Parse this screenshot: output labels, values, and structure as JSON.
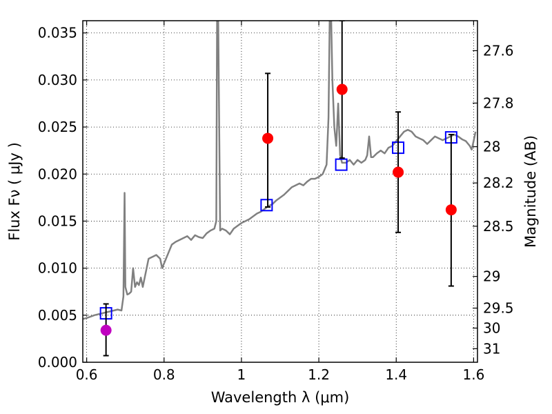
{
  "chart_data": {
    "type": "scatter",
    "xlabel": "Wavelength  λ (μm)",
    "ylabel": "Flux  Fν  ( μJy )",
    "y2label": "Magnitude (AB)",
    "xlim": [
      0.59,
      1.61
    ],
    "ylim": [
      0.0,
      0.0363
    ],
    "grid": true,
    "x_ticks": [
      {
        "value": 0.6,
        "label": "0.6"
      },
      {
        "value": 0.8,
        "label": "0.8"
      },
      {
        "value": 1.0,
        "label": "1"
      },
      {
        "value": 1.2,
        "label": "1.2"
      },
      {
        "value": 1.4,
        "label": "1.4"
      },
      {
        "value": 1.6,
        "label": "1.6"
      }
    ],
    "y_ticks": [
      {
        "value": 0.0,
        "label": "0.000"
      },
      {
        "value": 0.005,
        "label": "0.005"
      },
      {
        "value": 0.01,
        "label": "0.010"
      },
      {
        "value": 0.015,
        "label": "0.015"
      },
      {
        "value": 0.02,
        "label": "0.020"
      },
      {
        "value": 0.025,
        "label": "0.025"
      },
      {
        "value": 0.03,
        "label": "0.030"
      },
      {
        "value": 0.035,
        "label": "0.035"
      }
    ],
    "y2_ticks": [
      {
        "value": 27.6,
        "label": "27.6"
      },
      {
        "value": 27.8,
        "label": "27.8"
      },
      {
        "value": 28.0,
        "label": "28"
      },
      {
        "value": 28.2,
        "label": "28.2"
      },
      {
        "value": 28.5,
        "label": "28.5"
      },
      {
        "value": 29.0,
        "label": "29"
      },
      {
        "value": 29.5,
        "label": "29.5"
      },
      {
        "value": 30.0,
        "label": "30"
      },
      {
        "value": 31.0,
        "label": "31"
      }
    ],
    "series": [
      {
        "kind": "line",
        "color": "#808080",
        "points": [
          [
            0.59,
            0.0046
          ],
          [
            0.6,
            0.0047
          ],
          [
            0.62,
            0.005
          ],
          [
            0.64,
            0.0052
          ],
          [
            0.66,
            0.0054
          ],
          [
            0.68,
            0.0056
          ],
          [
            0.69,
            0.0055
          ],
          [
            0.695,
            0.007
          ],
          [
            0.698,
            0.018
          ],
          [
            0.7,
            0.008
          ],
          [
            0.705,
            0.0072
          ],
          [
            0.71,
            0.0073
          ],
          [
            0.715,
            0.0075
          ],
          [
            0.72,
            0.01
          ],
          [
            0.725,
            0.008
          ],
          [
            0.73,
            0.0085
          ],
          [
            0.735,
            0.0082
          ],
          [
            0.74,
            0.009
          ],
          [
            0.745,
            0.008
          ],
          [
            0.75,
            0.009
          ],
          [
            0.755,
            0.01
          ],
          [
            0.76,
            0.011
          ],
          [
            0.77,
            0.0112
          ],
          [
            0.78,
            0.0114
          ],
          [
            0.79,
            0.011
          ],
          [
            0.795,
            0.01
          ],
          [
            0.8,
            0.0105
          ],
          [
            0.81,
            0.0115
          ],
          [
            0.82,
            0.0125
          ],
          [
            0.83,
            0.0128
          ],
          [
            0.84,
            0.013
          ],
          [
            0.85,
            0.0132
          ],
          [
            0.86,
            0.0134
          ],
          [
            0.87,
            0.013
          ],
          [
            0.88,
            0.0135
          ],
          [
            0.89,
            0.0133
          ],
          [
            0.9,
            0.0132
          ],
          [
            0.91,
            0.0137
          ],
          [
            0.92,
            0.014
          ],
          [
            0.93,
            0.0142
          ],
          [
            0.935,
            0.015
          ],
          [
            0.937,
            0.0363
          ],
          [
            0.94,
            0.0363
          ],
          [
            0.945,
            0.014
          ],
          [
            0.95,
            0.0142
          ],
          [
            0.96,
            0.014
          ],
          [
            0.97,
            0.0136
          ],
          [
            0.98,
            0.0142
          ],
          [
            0.99,
            0.0145
          ],
          [
            1.0,
            0.0148
          ],
          [
            1.01,
            0.015
          ],
          [
            1.02,
            0.0152
          ],
          [
            1.03,
            0.0155
          ],
          [
            1.04,
            0.0158
          ],
          [
            1.05,
            0.016
          ],
          [
            1.06,
            0.0163
          ],
          [
            1.07,
            0.0166
          ],
          [
            1.08,
            0.0168
          ],
          [
            1.09,
            0.0172
          ],
          [
            1.1,
            0.0175
          ],
          [
            1.11,
            0.0178
          ],
          [
            1.12,
            0.0182
          ],
          [
            1.13,
            0.0186
          ],
          [
            1.14,
            0.0188
          ],
          [
            1.15,
            0.019
          ],
          [
            1.16,
            0.0188
          ],
          [
            1.17,
            0.0192
          ],
          [
            1.18,
            0.0195
          ],
          [
            1.19,
            0.0195
          ],
          [
            1.2,
            0.0197
          ],
          [
            1.21,
            0.02
          ],
          [
            1.22,
            0.021
          ],
          [
            1.225,
            0.026
          ],
          [
            1.228,
            0.0363
          ],
          [
            1.232,
            0.0363
          ],
          [
            1.235,
            0.03
          ],
          [
            1.24,
            0.025
          ],
          [
            1.245,
            0.023
          ],
          [
            1.25,
            0.0275
          ],
          [
            1.255,
            0.022
          ],
          [
            1.26,
            0.0212
          ],
          [
            1.27,
            0.0212
          ],
          [
            1.28,
            0.0215
          ],
          [
            1.29,
            0.021
          ],
          [
            1.3,
            0.0215
          ],
          [
            1.31,
            0.0212
          ],
          [
            1.32,
            0.0215
          ],
          [
            1.325,
            0.022
          ],
          [
            1.33,
            0.024
          ],
          [
            1.335,
            0.0218
          ],
          [
            1.34,
            0.0218
          ],
          [
            1.35,
            0.0222
          ],
          [
            1.36,
            0.0225
          ],
          [
            1.37,
            0.0222
          ],
          [
            1.38,
            0.0228
          ],
          [
            1.39,
            0.023
          ],
          [
            1.4,
            0.0235
          ],
          [
            1.41,
            0.024
          ],
          [
            1.42,
            0.0245
          ],
          [
            1.43,
            0.0247
          ],
          [
            1.44,
            0.0245
          ],
          [
            1.45,
            0.024
          ],
          [
            1.46,
            0.0238
          ],
          [
            1.47,
            0.0236
          ],
          [
            1.48,
            0.0232
          ],
          [
            1.49,
            0.0236
          ],
          [
            1.5,
            0.024
          ],
          [
            1.51,
            0.0238
          ],
          [
            1.52,
            0.0236
          ],
          [
            1.53,
            0.0238
          ],
          [
            1.54,
            0.024
          ],
          [
            1.55,
            0.0242
          ],
          [
            1.56,
            0.024
          ],
          [
            1.57,
            0.0237
          ],
          [
            1.58,
            0.0235
          ],
          [
            1.59,
            0.023
          ],
          [
            1.595,
            0.0226
          ],
          [
            1.6,
            0.0235
          ],
          [
            1.605,
            0.0245
          ]
        ]
      },
      {
        "kind": "squares",
        "color": "#0000ff",
        "points": [
          [
            0.65,
            0.0052
          ],
          [
            1.065,
            0.0167
          ],
          [
            1.258,
            0.021
          ],
          [
            1.405,
            0.0228
          ],
          [
            1.542,
            0.0239
          ]
        ]
      },
      {
        "kind": "points_with_errors",
        "points": [
          {
            "x": 0.65,
            "y": 0.0034,
            "yerr_low": 0.0007,
            "yerr_high": 0.0062,
            "color": "#c000c0"
          },
          {
            "x": 1.068,
            "y": 0.0238,
            "yerr_low": 0.0165,
            "yerr_high": 0.0307,
            "color": "#ff0000"
          },
          {
            "x": 1.26,
            "y": 0.029,
            "yerr_low": 0.0217,
            "yerr_high": 0.0363,
            "color": "#ff0000"
          },
          {
            "x": 1.405,
            "y": 0.0202,
            "yerr_low": 0.0138,
            "yerr_high": 0.0266,
            "color": "#ff0000"
          },
          {
            "x": 1.542,
            "y": 0.0162,
            "yerr_low": 0.0081,
            "yerr_high": 0.0242,
            "color": "#ff0000"
          }
        ]
      }
    ]
  }
}
